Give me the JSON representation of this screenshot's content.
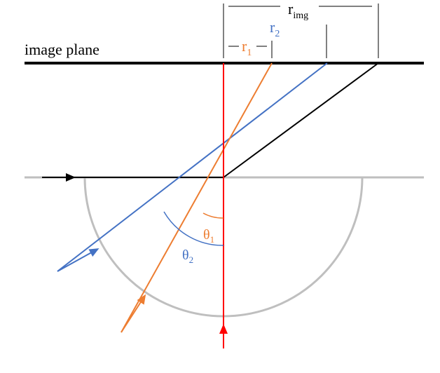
{
  "labels": {
    "image_plane": "image plane",
    "r_img_main": "r",
    "r_img_sub": "img",
    "r1_main": "r",
    "r1_sub": "1",
    "r2_main": "r",
    "r2_sub": "2",
    "theta1_main": "θ",
    "theta1_sub": "1",
    "theta2_main": "θ",
    "theta2_sub": "2"
  },
  "colors": {
    "chief_ray": "#ff0000",
    "ray_1": "#ed7d31",
    "ray_2": "#4472c4",
    "marginal_ray": "#000000",
    "surface": "#bfbfbf"
  }
}
